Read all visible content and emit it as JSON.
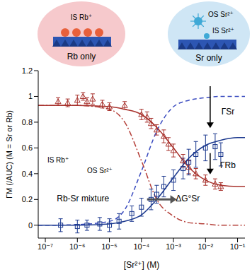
{
  "chart_data": {
    "type": "scatter",
    "x_label": "[Sr²⁺] (M)",
    "y_label": "ΓM (/AUC)",
    "y_label_note": "(M = Sr or Rb)",
    "log": "x",
    "xlim": [
      6e-08,
      0.17
    ],
    "xticks": [
      {
        "value": 1e-07,
        "label": "10⁻⁷"
      },
      {
        "value": 1e-06,
        "label": "10⁻⁶"
      },
      {
        "value": 1e-05,
        "label": "10⁻⁵"
      },
      {
        "value": 0.0001,
        "label": "10⁻⁴"
      },
      {
        "value": 0.001,
        "label": "10⁻³"
      },
      {
        "value": 0.01,
        "label": "10⁻²"
      },
      {
        "value": 0.1,
        "label": "10⁻¹"
      }
    ],
    "ylim": [
      -0.1,
      1.2
    ],
    "yticks": [
      0,
      0.2,
      0.4,
      0.6,
      0.8,
      1,
      1.2
    ],
    "series": [
      {
        "type": "line",
        "color": "#3b4cc0",
        "line_style": "dashed",
        "x": [
          6e-08,
          1e-07,
          1e-06,
          1e-05,
          3e-05,
          0.0001,
          0.0003,
          0.001,
          0.003,
          0.01,
          0.03,
          0.1,
          0.17
        ],
        "values": [
          0,
          0,
          0.005,
          0.03,
          0.12,
          0.42,
          0.73,
          0.92,
          0.97,
          0.99,
          1,
          1,
          1
        ]
      },
      {
        "type": "line",
        "color": "#b5403a",
        "line_style": "dashdot",
        "x": [
          6e-08,
          1e-07,
          1e-06,
          1e-05,
          3e-05,
          0.0001,
          0.0003,
          0.001,
          0.003,
          0.01,
          0.03,
          0.1,
          0.17
        ],
        "values": [
          0.93,
          0.93,
          0.93,
          0.9,
          0.8,
          0.5,
          0.2,
          0.07,
          0.02,
          0.01,
          0,
          0,
          0
        ]
      },
      {
        "type": "line",
        "color": "#a8322d",
        "line_style": "solid",
        "x": [
          6e-08,
          1e-07,
          1e-06,
          1e-05,
          3e-05,
          0.0001,
          0.0003,
          0.001,
          0.003,
          0.01,
          0.03,
          0.1,
          0.17
        ],
        "values": [
          0.93,
          0.93,
          0.93,
          0.92,
          0.9,
          0.86,
          0.76,
          0.6,
          0.45,
          0.35,
          0.31,
          0.3,
          0.3
        ]
      },
      {
        "type": "line",
        "color": "#1d3a8f",
        "line_style": "solid",
        "x": [
          6e-08,
          1e-07,
          1e-06,
          1e-05,
          3e-05,
          0.0001,
          0.0003,
          0.001,
          0.003,
          0.01,
          0.03,
          0.1,
          0.17
        ],
        "values": [
          0,
          0,
          0,
          0.01,
          0.03,
          0.08,
          0.2,
          0.37,
          0.52,
          0.62,
          0.66,
          0.68,
          0.68
        ]
      },
      {
        "name": "ΓRb",
        "type": "scatter",
        "marker": "triangle",
        "color": "#a8322d",
        "x": [
          2.5e-07,
          5e-07,
          1e-06,
          1.5e-06,
          2e-06,
          3e-06,
          6e-06,
          1e-05,
          3e-05,
          0.0001,
          0.00015,
          0.0002,
          0.0003,
          0.0005,
          0.0007,
          0.001,
          0.002,
          0.003,
          0.005,
          0.01,
          0.02,
          0.03
        ],
        "values": [
          0.96,
          0.95,
          0.97,
          1.0,
          0.96,
          0.98,
          0.94,
          0.92,
          0.93,
          0.86,
          0.84,
          0.79,
          0.74,
          0.69,
          0.63,
          0.58,
          0.5,
          0.45,
          0.4,
          0.35,
          0.32,
          0.3
        ],
        "errors": [
          0.03,
          0.03,
          0.04,
          0.03,
          0.03,
          0.04,
          0.03,
          0.03,
          0.03,
          0.04,
          0.04,
          0.04,
          0.04,
          0.05,
          0.05,
          0.05,
          0.05,
          0.05,
          0.04,
          0.04,
          0.04,
          0.03
        ]
      },
      {
        "name": "ΓSr",
        "type": "scatter",
        "marker": "square",
        "color": "#1d3a8f",
        "x": [
          3e-07,
          1e-06,
          2e-06,
          5e-06,
          1e-05,
          2e-05,
          5e-05,
          0.0001,
          0.0002,
          0.0003,
          0.0005,
          0.001,
          0.002,
          0.003,
          0.005,
          0.01,
          0.02,
          0.03
        ],
        "values": [
          0,
          -0.01,
          0,
          0.01,
          0,
          0.03,
          0.09,
          0.14,
          0.2,
          0.24,
          0.3,
          0.35,
          0.44,
          0.49,
          0.55,
          0.6,
          0.61,
          0.55
        ],
        "errors": [
          0.05,
          0.05,
          0.04,
          0.05,
          0.05,
          0.06,
          0.06,
          0.07,
          0.08,
          0.07,
          0.08,
          0.08,
          0.08,
          0.1,
          0.1,
          0.1,
          0.1,
          0.09
        ]
      }
    ],
    "annotations": {
      "cartoons": [
        {
          "title": "Rb only",
          "labels": [
            "IS Rb⁺"
          ]
        },
        {
          "title": "Sr only",
          "labels": [
            "OS Sr²⁺",
            "IS Sr²⁺"
          ]
        },
        {
          "title": "Rb-Sr mixture",
          "labels": [
            "IS Rb⁺",
            "OS Sr²⁺"
          ]
        }
      ],
      "delta_g": "ΔG°Sr",
      "gamma_sr": "ΓSr",
      "gamma_rb": "ΓRb"
    }
  }
}
